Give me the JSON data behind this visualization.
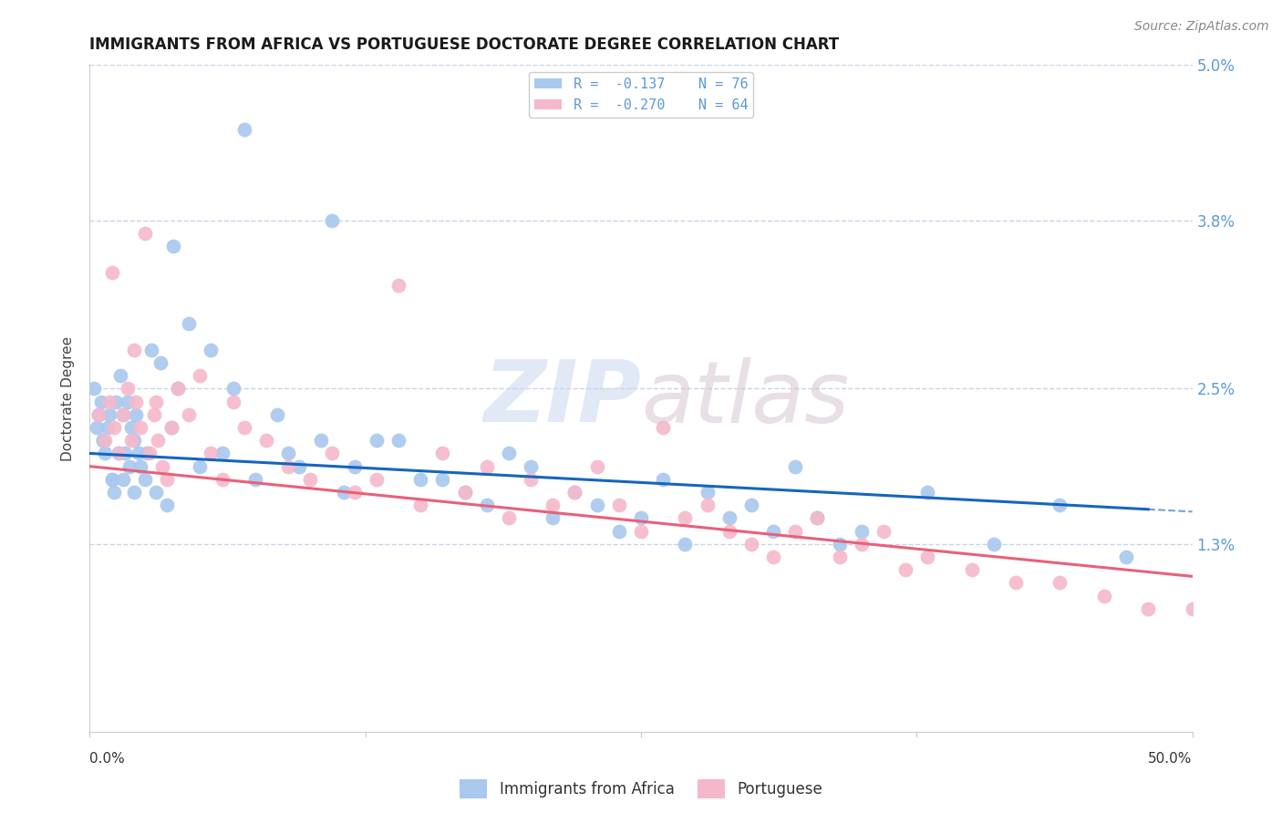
{
  "title": "IMMIGRANTS FROM AFRICA VS PORTUGUESE DOCTORATE DEGREE CORRELATION CHART",
  "source": "Source: ZipAtlas.com",
  "ylabel": "Doctorate Degree",
  "ytick_values": [
    1.3,
    2.5,
    3.8,
    5.0
  ],
  "ytick_labels": [
    "1.3%",
    "2.5%",
    "3.8%",
    "5.0%"
  ],
  "xmin": 0.0,
  "xmax": 50.0,
  "ymin": -0.15,
  "ymax": 5.0,
  "legend_entries": [
    {
      "label_r": "R =  -0.137",
      "label_n": "N = 76",
      "color": "#a8c8ee"
    },
    {
      "label_r": "R =  -0.270",
      "label_n": "N = 64",
      "color": "#f5b8ca"
    }
  ],
  "legend_bottom": [
    "Immigrants from Africa",
    "Portuguese"
  ],
  "africa_color": "#a8c8ee",
  "portuguese_color": "#f5b8ca",
  "africa_line_color": "#1565c0",
  "portuguese_line_color": "#e8607a",
  "africa_scatter_x": [
    0.3,
    0.4,
    0.5,
    0.6,
    0.7,
    0.8,
    0.9,
    1.0,
    1.1,
    1.2,
    1.3,
    1.4,
    1.5,
    1.6,
    1.7,
    1.8,
    1.9,
    2.0,
    2.1,
    2.2,
    2.3,
    2.5,
    2.6,
    2.8,
    3.0,
    3.2,
    3.5,
    3.7,
    3.8,
    4.0,
    4.5,
    5.0,
    5.5,
    6.0,
    6.5,
    7.0,
    7.5,
    8.5,
    9.0,
    9.5,
    10.5,
    11.0,
    11.5,
    12.0,
    13.0,
    14.0,
    15.0,
    16.0,
    17.0,
    18.0,
    19.0,
    20.0,
    21.0,
    22.0,
    23.0,
    24.0,
    25.0,
    26.0,
    27.0,
    28.0,
    29.0,
    30.0,
    31.0,
    32.0,
    33.0,
    34.0,
    35.0,
    38.0,
    41.0,
    44.0,
    47.0,
    0.2,
    0.6,
    1.0,
    1.5,
    2.0
  ],
  "africa_scatter_y": [
    2.2,
    2.3,
    2.4,
    2.1,
    2.0,
    2.2,
    2.3,
    1.8,
    1.7,
    2.4,
    2.0,
    2.6,
    1.8,
    2.0,
    2.4,
    1.9,
    2.2,
    2.1,
    2.3,
    2.0,
    1.9,
    1.8,
    2.0,
    2.8,
    1.7,
    2.7,
    1.6,
    2.2,
    3.6,
    2.5,
    3.0,
    1.9,
    2.8,
    2.0,
    2.5,
    4.5,
    1.8,
    2.3,
    2.0,
    1.9,
    2.1,
    3.8,
    1.7,
    1.9,
    2.1,
    2.1,
    1.8,
    1.8,
    1.7,
    1.6,
    2.0,
    1.9,
    1.5,
    1.7,
    1.6,
    1.4,
    1.5,
    1.8,
    1.3,
    1.7,
    1.5,
    1.6,
    1.4,
    1.9,
    1.5,
    1.3,
    1.4,
    1.7,
    1.3,
    1.6,
    1.2,
    2.5,
    2.1,
    1.8,
    2.3,
    1.7
  ],
  "portuguese_scatter_x": [
    0.4,
    0.7,
    0.9,
    1.1,
    1.3,
    1.5,
    1.7,
    1.9,
    2.1,
    2.3,
    2.5,
    2.7,
    2.9,
    3.1,
    3.3,
    3.5,
    3.7,
    4.0,
    4.5,
    5.0,
    5.5,
    6.0,
    6.5,
    7.0,
    8.0,
    9.0,
    10.0,
    11.0,
    12.0,
    13.0,
    14.0,
    15.0,
    16.0,
    17.0,
    18.0,
    19.0,
    20.0,
    21.0,
    22.0,
    23.0,
    24.0,
    25.0,
    26.0,
    27.0,
    28.0,
    29.0,
    30.0,
    31.0,
    32.0,
    33.0,
    34.0,
    35.0,
    36.0,
    37.0,
    38.0,
    40.0,
    42.0,
    44.0,
    46.0,
    48.0,
    50.0,
    1.0,
    2.0,
    3.0
  ],
  "portuguese_scatter_y": [
    2.3,
    2.1,
    2.4,
    2.2,
    2.0,
    2.3,
    2.5,
    2.1,
    2.4,
    2.2,
    3.7,
    2.0,
    2.3,
    2.1,
    1.9,
    1.8,
    2.2,
    2.5,
    2.3,
    2.6,
    2.0,
    1.8,
    2.4,
    2.2,
    2.1,
    1.9,
    1.8,
    2.0,
    1.7,
    1.8,
    3.3,
    1.6,
    2.0,
    1.7,
    1.9,
    1.5,
    1.8,
    1.6,
    1.7,
    1.9,
    1.6,
    1.4,
    2.2,
    1.5,
    1.6,
    1.4,
    1.3,
    1.2,
    1.4,
    1.5,
    1.2,
    1.3,
    1.4,
    1.1,
    1.2,
    1.1,
    1.0,
    1.0,
    0.9,
    0.8,
    0.8,
    3.4,
    2.8,
    2.4
  ],
  "watermark_zip": "ZIP",
  "watermark_atlas": "atlas",
  "africa_trend": [
    0.0,
    2.0,
    50.0,
    1.55
  ],
  "portuguese_trend": [
    0.0,
    1.9,
    50.0,
    1.05
  ],
  "africa_trend_solid_end": 48.0,
  "background_color": "#ffffff",
  "grid_color": "#c8d4e8",
  "right_axis_color": "#5b9bd5",
  "title_fontsize": 12,
  "source_fontsize": 10
}
